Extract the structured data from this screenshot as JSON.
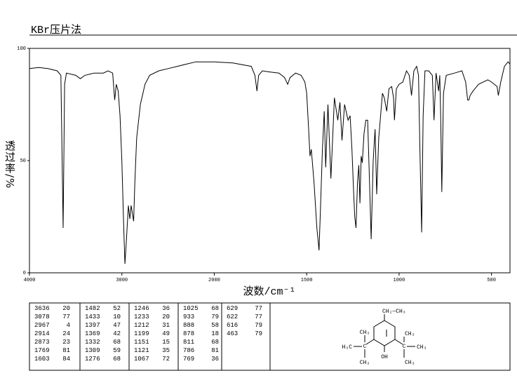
{
  "chart_data": {
    "type": "line",
    "title": "KBr压片法",
    "xlabel": "波数/cm⁻¹",
    "ylabel": "透过率/%",
    "color": "#000000",
    "xlim": [
      4000,
      400
    ],
    "xscale": {
      "break": 2000,
      "factor": 2
    },
    "xticks": [
      4000,
      3000,
      2000,
      1500,
      1000,
      500
    ],
    "ylim": [
      0,
      100
    ],
    "yticks": [
      0,
      50,
      100
    ],
    "x": [
      4000,
      3900,
      3800,
      3700,
      3660,
      3636,
      3620,
      3600,
      3500,
      3450,
      3400,
      3300,
      3200,
      3150,
      3100,
      3078,
      3060,
      3040,
      3020,
      3000,
      2980,
      2967,
      2950,
      2930,
      2914,
      2900,
      2873,
      2860,
      2840,
      2800,
      2750,
      2700,
      2600,
      2500,
      2400,
      2300,
      2200,
      2100,
      2000,
      1900,
      1800,
      1780,
      1769,
      1760,
      1740,
      1700,
      1650,
      1620,
      1603,
      1590,
      1560,
      1530,
      1510,
      1500,
      1490,
      1482,
      1475,
      1460,
      1445,
      1433,
      1425,
      1415,
      1405,
      1397,
      1385,
      1369,
      1350,
      1332,
      1320,
      1309,
      1295,
      1276,
      1265,
      1255,
      1246,
      1240,
      1233,
      1225,
      1218,
      1212,
      1205,
      1199,
      1190,
      1180,
      1170,
      1160,
      1151,
      1140,
      1130,
      1121,
      1110,
      1090,
      1080,
      1067,
      1055,
      1040,
      1030,
      1025,
      1015,
      1000,
      980,
      960,
      945,
      933,
      920,
      905,
      895,
      888,
      878,
      870,
      860,
      840,
      820,
      811,
      800,
      786,
      780,
      775,
      769,
      760,
      745,
      700,
      660,
      640,
      629,
      622,
      616,
      600,
      570,
      520,
      500,
      470,
      463,
      450,
      430,
      410,
      400
    ],
    "values": [
      91,
      91.5,
      91,
      90,
      88,
      20,
      84,
      89,
      88,
      86.5,
      88,
      89,
      89,
      90,
      89,
      77,
      84,
      81,
      70,
      50,
      20,
      4,
      15,
      30,
      24,
      30,
      23,
      40,
      60,
      75,
      84,
      88,
      90,
      91,
      92,
      93,
      94,
      94,
      94,
      93.5,
      92,
      88,
      81,
      88,
      90,
      89.5,
      89,
      87,
      84,
      87,
      89,
      88,
      85,
      80,
      65,
      52,
      55,
      40,
      20,
      10,
      30,
      55,
      72,
      47,
      75,
      42,
      78,
      68,
      76,
      59,
      75,
      68,
      70,
      55,
      36,
      25,
      20,
      40,
      48,
      31,
      52,
      49,
      62,
      68,
      68,
      40,
      15,
      50,
      64,
      35,
      60,
      80,
      78,
      72,
      82,
      83,
      78,
      68,
      82,
      84,
      85,
      90,
      88,
      79,
      90,
      92,
      88,
      58,
      18,
      70,
      90,
      90,
      88,
      68,
      89,
      81,
      88,
      70,
      36,
      80,
      88,
      89,
      90,
      85,
      77,
      77,
      79,
      81,
      84,
      86,
      85,
      83,
      79,
      85,
      92,
      94,
      93
    ]
  },
  "peak_table": [
    [
      [
        3636,
        20
      ],
      [
        3078,
        77
      ],
      [
        2967,
        4
      ],
      [
        2914,
        24
      ],
      [
        2873,
        23
      ],
      [
        1769,
        81
      ],
      [
        1603,
        84
      ]
    ],
    [
      [
        1482,
        52
      ],
      [
        1433,
        10
      ],
      [
        1397,
        47
      ],
      [
        1369,
        42
      ],
      [
        1332,
        68
      ],
      [
        1309,
        59
      ],
      [
        1276,
        68
      ]
    ],
    [
      [
        1246,
        36
      ],
      [
        1233,
        20
      ],
      [
        1212,
        31
      ],
      [
        1199,
        49
      ],
      [
        1151,
        15
      ],
      [
        1121,
        35
      ],
      [
        1067,
        72
      ]
    ],
    [
      [
        1025,
        68
      ],
      [
        933,
        79
      ],
      [
        888,
        58
      ],
      [
        878,
        18
      ],
      [
        811,
        68
      ],
      [
        786,
        81
      ],
      [
        769,
        36
      ]
    ],
    [
      [
        629,
        77
      ],
      [
        622,
        77
      ],
      [
        616,
        79
      ],
      [
        463,
        79
      ]
    ]
  ],
  "structure": {
    "labels": [
      "CH₂—CH₃",
      "CH₃",
      "C",
      "H₃C",
      "CH₃",
      "OH",
      "C",
      "CH₃",
      "CH₃",
      "CH₃"
    ]
  }
}
